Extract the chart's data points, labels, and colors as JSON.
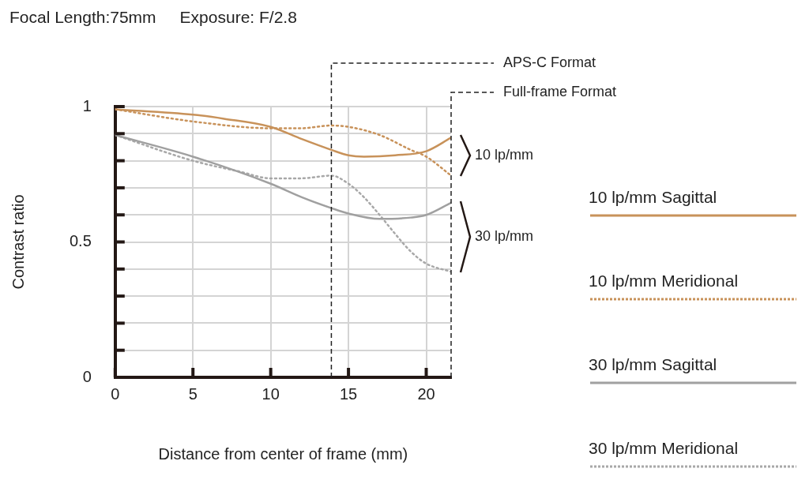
{
  "chart_data": {
    "type": "line",
    "title": "Focal Length:75mm",
    "subtitle": "Exposure: F/2.8",
    "xlabel": "Distance from center of frame (mm)",
    "ylabel": "Contrast ratio",
    "xlim": [
      0,
      21.6
    ],
    "xticks": [
      0,
      5,
      10,
      15,
      20
    ],
    "ylim": [
      0,
      1
    ],
    "yticks": [
      0,
      {
        "value": 0.1,
        "label": null
      },
      {
        "value": 0.2,
        "label": null
      },
      {
        "value": 0.3,
        "label": null
      },
      {
        "value": 0.4,
        "label": null
      },
      0.5,
      {
        "value": 0.6,
        "label": null
      },
      {
        "value": 0.7,
        "label": null
      },
      {
        "value": 0.8,
        "label": null
      },
      {
        "value": 0.9,
        "label": null
      },
      1
    ],
    "grid": true,
    "legend": "right",
    "marker": "none",
    "series": [
      {
        "name": "10 lp/mm Sagittal",
        "color": "#c8925a",
        "line_style": "solid",
        "x": [
          0,
          5,
          7,
          10,
          12,
          13.9,
          15,
          16,
          18,
          20,
          21.6
        ],
        "values": [
          0.99,
          0.97,
          0.955,
          0.925,
          0.88,
          0.84,
          0.82,
          0.815,
          0.82,
          0.835,
          0.885
        ]
      },
      {
        "name": "10 lp/mm Meridional",
        "color": "#c8925a",
        "line_style": "dotted",
        "x": [
          0,
          5,
          10,
          12,
          13.9,
          15,
          17,
          19,
          20,
          21.6
        ],
        "values": [
          0.99,
          0.945,
          0.92,
          0.92,
          0.93,
          0.925,
          0.895,
          0.84,
          0.815,
          0.745
        ]
      },
      {
        "name": "30 lp/mm Sagittal",
        "color": "#a0a0a0",
        "line_style": "solid",
        "x": [
          0,
          5,
          10,
          12,
          13.9,
          15,
          17,
          19,
          20,
          21.6
        ],
        "values": [
          0.895,
          0.815,
          0.715,
          0.665,
          0.625,
          0.605,
          0.585,
          0.59,
          0.6,
          0.645
        ]
      },
      {
        "name": "30 lp/mm Meridional",
        "color": "#a8a8a8",
        "line_style": "dotted",
        "x": [
          0,
          5,
          8,
          10,
          12,
          13.9,
          15,
          16,
          17,
          18,
          19,
          20,
          21.6
        ],
        "values": [
          0.895,
          0.8,
          0.76,
          0.735,
          0.735,
          0.745,
          0.715,
          0.665,
          0.6,
          0.53,
          0.465,
          0.42,
          0.39
        ]
      }
    ],
    "ref_lines": [
      {
        "axis": "x",
        "value": 13.9,
        "label": "APS-C Format",
        "color": "#222222",
        "line_style": "dashed"
      },
      {
        "axis": "x",
        "value": 21.6,
        "label": "Full-frame Format",
        "color": "#222222",
        "line_style": "dashed"
      }
    ],
    "annotations": [
      {
        "text": "10 lp/mm",
        "x": 21.6,
        "y": 0.82
      },
      {
        "text": "30 lp/mm",
        "x": 21.6,
        "y": 0.52
      }
    ]
  }
}
